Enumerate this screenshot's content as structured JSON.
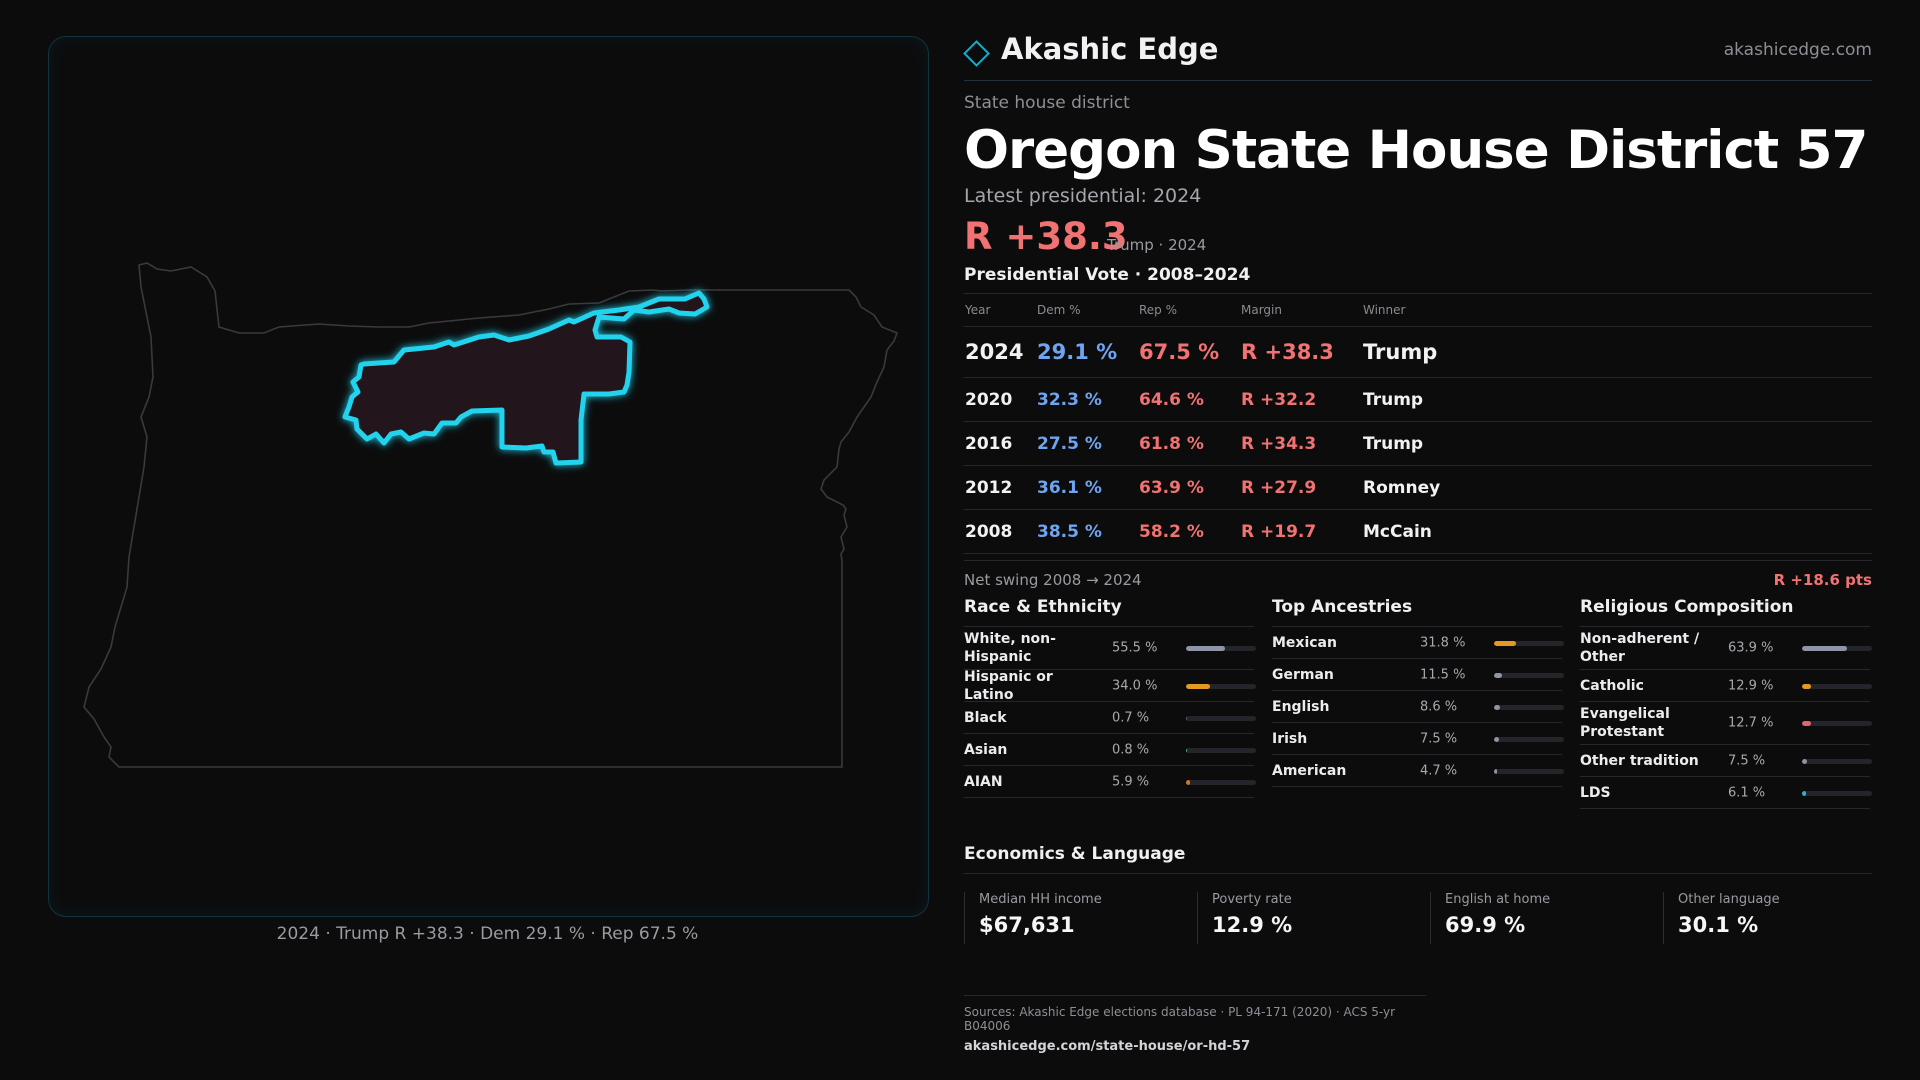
{
  "brand": {
    "name": "Akashic Edge",
    "url": "akashicedge.com"
  },
  "kicker": "State house district",
  "title": "Oregon State House District 57",
  "latest_label": "Latest presidential: 2024",
  "headline": {
    "margin": "R +38.3",
    "sub": "Trump · 2024"
  },
  "vote_history": {
    "title": "Presidential Vote · 2008–2024",
    "headers": [
      "Year",
      "Dem %",
      "Rep %",
      "Margin",
      "Winner"
    ],
    "rows": [
      {
        "year": "2024",
        "dem": "29.1 %",
        "rep": "67.5 %",
        "margin": "R +38.3",
        "winner": "Trump"
      },
      {
        "year": "2020",
        "dem": "32.3 %",
        "rep": "64.6 %",
        "margin": "R +32.2",
        "winner": "Trump"
      },
      {
        "year": "2016",
        "dem": "27.5 %",
        "rep": "61.8 %",
        "margin": "R +34.3",
        "winner": "Trump"
      },
      {
        "year": "2012",
        "dem": "36.1 %",
        "rep": "63.9 %",
        "margin": "R +27.9",
        "winner": "Romney"
      },
      {
        "year": "2008",
        "dem": "38.5 %",
        "rep": "58.2 %",
        "margin": "R +19.7",
        "winner": "McCain"
      }
    ]
  },
  "swing": {
    "label": "Net swing 2008 → 2024",
    "value": "R +18.6 pts"
  },
  "race": {
    "title": "Race & Ethnicity",
    "items": [
      {
        "label": "White, non-Hispanic",
        "pct": "55.5 %",
        "value": 55.5,
        "color": "#8d95a6"
      },
      {
        "label": "Hispanic or Latino",
        "pct": "34.0 %",
        "value": 34.0,
        "color": "#e39a23"
      },
      {
        "label": "Black",
        "pct": "0.7 %",
        "value": 0.7,
        "color": "#5a5f68"
      },
      {
        "label": "Asian",
        "pct": "0.8 %",
        "value": 0.8,
        "color": "#3bb27a"
      },
      {
        "label": "AIAN",
        "pct": "5.9 %",
        "value": 5.9,
        "color": "#c87a2a"
      }
    ]
  },
  "ancestry": {
    "title": "Top Ancestries",
    "items": [
      {
        "label": "Mexican",
        "pct": "31.8 %",
        "value": 31.8,
        "color": "#e39a23"
      },
      {
        "label": "German",
        "pct": "11.5 %",
        "value": 11.5,
        "color": "#8d95a6"
      },
      {
        "label": "English",
        "pct": "8.6 %",
        "value": 8.6,
        "color": "#8d95a6"
      },
      {
        "label": "Irish",
        "pct": "7.5 %",
        "value": 7.5,
        "color": "#8d95a6"
      },
      {
        "label": "American",
        "pct": "4.7 %",
        "value": 4.7,
        "color": "#8d95a6"
      }
    ]
  },
  "religion": {
    "title": "Religious Composition",
    "items": [
      {
        "label": "Non-adherent / Other",
        "pct": "63.9 %",
        "value": 63.9,
        "color": "#8d95a6"
      },
      {
        "label": "Catholic",
        "pct": "12.9 %",
        "value": 12.9,
        "color": "#e39a23"
      },
      {
        "label": "Evangelical Protestant",
        "pct": "12.7 %",
        "value": 12.7,
        "color": "#e0666a"
      },
      {
        "label": "Other tradition",
        "pct": "7.5 %",
        "value": 7.5,
        "color": "#8d95a6"
      },
      {
        "label": "LDS",
        "pct": "6.1 %",
        "value": 6.1,
        "color": "#2ab4c9"
      }
    ]
  },
  "economics": {
    "title": "Economics & Language",
    "items": [
      {
        "label": "Median HH income",
        "value": "$67,631"
      },
      {
        "label": "Poverty rate",
        "value": "12.9 %"
      },
      {
        "label": "English at home",
        "value": "69.9 %"
      },
      {
        "label": "Other language",
        "value": "30.1 %"
      }
    ]
  },
  "map_caption": "2024 · Trump R +38.3 · Dem 29.1 % · Rep 67.5 %",
  "sources": {
    "text": "Sources: Akashic Edge elections database · PL 94-171 (2020) · ACS 5-yr B04006",
    "url": "akashicedge.com/state-house/or-hd-57"
  },
  "colors": {
    "accent": "#1fa9c4",
    "dem": "#6fa4f0",
    "rep": "#f07273",
    "district_outline": "#22d3ee"
  }
}
